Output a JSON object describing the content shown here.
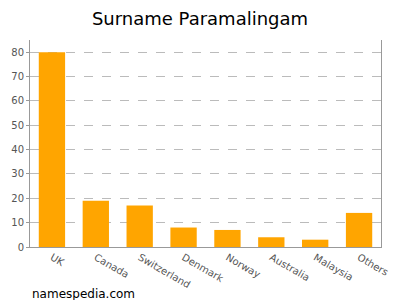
{
  "chart_data": {
    "type": "bar",
    "title": "Surname Paramalingam",
    "categories": [
      "UK",
      "Canada",
      "Switzerland",
      "Denmark",
      "Norway",
      "Australia",
      "Malaysia",
      "Others"
    ],
    "values": [
      80,
      19,
      17,
      8,
      7,
      4,
      3,
      14
    ],
    "color": "#ffa500",
    "ylim": [
      0,
      85
    ],
    "yticks": [
      0,
      10,
      20,
      30,
      40,
      50,
      60,
      70,
      80
    ],
    "grid": true,
    "annotations": [
      "namespedia.com"
    ]
  }
}
